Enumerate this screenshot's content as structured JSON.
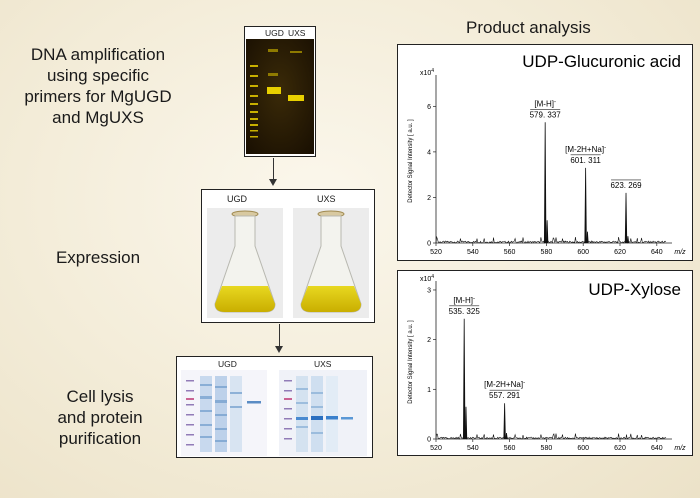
{
  "steps": {
    "dna": [
      "DNA amplification",
      "using specific",
      "primers for MgUGD",
      "and MgUXS"
    ],
    "expression": "Expression",
    "lysis": [
      "Cell lysis",
      "and protein",
      "purification"
    ]
  },
  "gel": {
    "label_ugd": "UGD",
    "label_uxs": "UXS"
  },
  "flasks": {
    "label_ugd": "UGD",
    "label_uxs": "UXS"
  },
  "sds": {
    "label_ugd": "UGD",
    "label_uxs": "UXS"
  },
  "product_analysis_title": "Product analysis",
  "spectra": [
    {
      "title": "UDP-Glucuronic acid",
      "scale": "x10",
      "scale_exp": "4",
      "ylabel": "Detector Signal Intensity  [ a.u. ]",
      "xlabel": "m/z",
      "chart_data": {
        "type": "line",
        "xlim": [
          520,
          645
        ],
        "ylim": [
          0,
          7.2
        ],
        "xticks": [
          520,
          540,
          560,
          580,
          600,
          620,
          640
        ],
        "yticks": [
          0,
          2,
          4,
          6
        ],
        "peaks": [
          {
            "x": 579.337,
            "y": 5.3,
            "ion": "[M-H]",
            "charge": "-",
            "mz": "579. 337"
          },
          {
            "x": 580.4,
            "y": 1.0
          },
          {
            "x": 601.311,
            "y": 3.3,
            "ion": "[M-2H+Na]",
            "charge": "-",
            "mz": "601. 311"
          },
          {
            "x": 602.3,
            "y": 0.5
          },
          {
            "x": 623.269,
            "y": 2.2,
            "mz": "623. 269"
          },
          {
            "x": 624.3,
            "y": 0.3
          }
        ]
      }
    },
    {
      "title": "UDP-Xylose",
      "scale": "x10",
      "scale_exp": "4",
      "ylabel": "Detector Signal Intensity  [ a.u. ]",
      "xlabel": "m/z",
      "chart_data": {
        "type": "line",
        "xlim": [
          520,
          645
        ],
        "ylim": [
          0,
          3.1
        ],
        "xticks": [
          520,
          540,
          560,
          580,
          600,
          620,
          640
        ],
        "yticks": [
          0,
          1,
          2,
          3
        ],
        "peaks": [
          {
            "x": 535.325,
            "y": 2.42,
            "ion": "[M-H]",
            "charge": "-",
            "mz": "535. 325"
          },
          {
            "x": 536.3,
            "y": 0.65
          },
          {
            "x": 557.291,
            "y": 0.72,
            "ion": "[M-2H+Na]",
            "charge": "-",
            "mz": "557. 291"
          },
          {
            "x": 558.3,
            "y": 0.12
          }
        ]
      }
    }
  ],
  "colors": {
    "gel_bg": "#2a1c04",
    "band": "#e8d000",
    "flask_liquid": "#d9c400",
    "coomassie": "#3a8fc8"
  }
}
